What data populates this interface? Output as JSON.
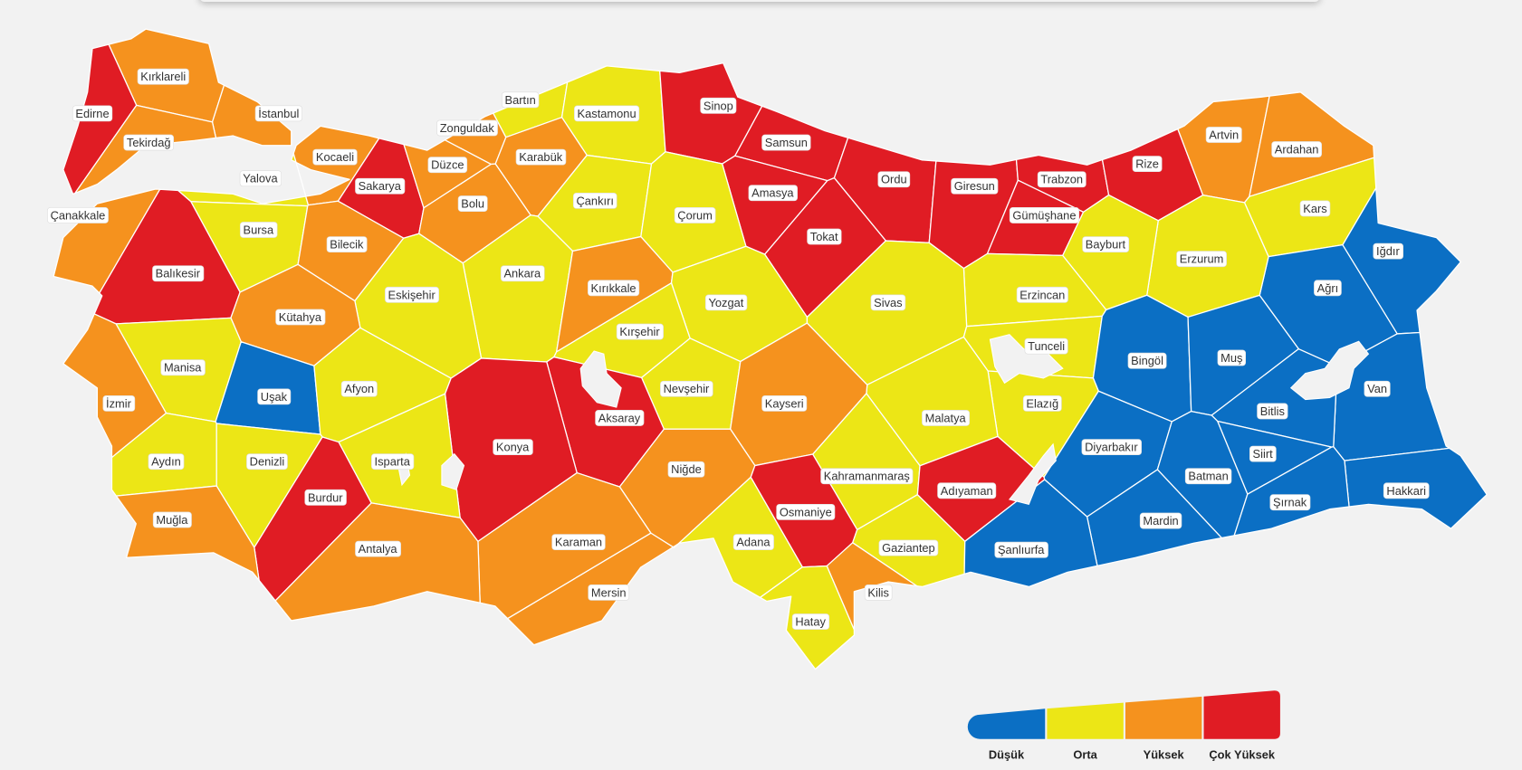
{
  "provinces": [
    {
      "name": "Kırklareli",
      "level": 2
    },
    {
      "name": "Edirne",
      "level": 3
    },
    {
      "name": "İstanbul",
      "level": 2
    },
    {
      "name": "Tekirdağ",
      "level": 2
    },
    {
      "name": "Yalova",
      "level": 1
    },
    {
      "name": "Kocaeli",
      "level": 2
    },
    {
      "name": "Sakarya",
      "level": 3
    },
    {
      "name": "Düzce",
      "level": 2
    },
    {
      "name": "Zonguldak",
      "level": 2
    },
    {
      "name": "Bartın",
      "level": 1
    },
    {
      "name": "Kastamonu",
      "level": 1
    },
    {
      "name": "Karabük",
      "level": 2
    },
    {
      "name": "Bolu",
      "level": 2
    },
    {
      "name": "Çanakkale",
      "level": 2
    },
    {
      "name": "Bursa",
      "level": 1
    },
    {
      "name": "Bilecik",
      "level": 2
    },
    {
      "name": "Balıkesir",
      "level": 3
    },
    {
      "name": "Sinop",
      "level": 3
    },
    {
      "name": "Samsun",
      "level": 3
    },
    {
      "name": "Amasya",
      "level": 3
    },
    {
      "name": "Tokat",
      "level": 3
    },
    {
      "name": "Ordu",
      "level": 3
    },
    {
      "name": "Giresun",
      "level": 3
    },
    {
      "name": "Trabzon",
      "level": 3
    },
    {
      "name": "Rize",
      "level": 3
    },
    {
      "name": "Gümüşhane",
      "level": 3
    },
    {
      "name": "Artvin",
      "level": 2
    },
    {
      "name": "Ardahan",
      "level": 2
    },
    {
      "name": "Kars",
      "level": 1
    },
    {
      "name": "Iğdır",
      "level": 0
    },
    {
      "name": "Ağrı",
      "level": 0
    },
    {
      "name": "Erzurum",
      "level": 1
    },
    {
      "name": "Bayburt",
      "level": 1
    },
    {
      "name": "Erzincan",
      "level": 1
    },
    {
      "name": "Çankırı",
      "level": 1
    },
    {
      "name": "Çorum",
      "level": 1
    },
    {
      "name": "Ankara",
      "level": 1
    },
    {
      "name": "Kırıkkale",
      "level": 2
    },
    {
      "name": "Eskişehir",
      "level": 1
    },
    {
      "name": "Kütahya",
      "level": 2
    },
    {
      "name": "Yozgat",
      "level": 1
    },
    {
      "name": "Sivas",
      "level": 1
    },
    {
      "name": "Tunceli",
      "level": 1
    },
    {
      "name": "Bingöl",
      "level": 0
    },
    {
      "name": "Muş",
      "level": 0
    },
    {
      "name": "Van",
      "level": 0
    },
    {
      "name": "Bitlis",
      "level": 0
    },
    {
      "name": "Elazığ",
      "level": 1
    },
    {
      "name": "Malatya",
      "level": 1
    },
    {
      "name": "Kırşehir",
      "level": 1
    },
    {
      "name": "Nevşehir",
      "level": 1
    },
    {
      "name": "Kayseri",
      "level": 2
    },
    {
      "name": "Manisa",
      "level": 1
    },
    {
      "name": "Uşak",
      "level": 0
    },
    {
      "name": "Afyon",
      "level": 1
    },
    {
      "name": "İzmir",
      "level": 2
    },
    {
      "name": "Aksaray",
      "level": 3
    },
    {
      "name": "Konya",
      "level": 3
    },
    {
      "name": "Aydın",
      "level": 1
    },
    {
      "name": "Denizli",
      "level": 1
    },
    {
      "name": "Isparta",
      "level": 1
    },
    {
      "name": "Niğde",
      "level": 2
    },
    {
      "name": "Kahramanmaraş",
      "level": 1
    },
    {
      "name": "Diyarbakır",
      "level": 0
    },
    {
      "name": "Siirt",
      "level": 0
    },
    {
      "name": "Batman",
      "level": 0
    },
    {
      "name": "Adıyaman",
      "level": 3
    },
    {
      "name": "Hakkari",
      "level": 0
    },
    {
      "name": "Şırnak",
      "level": 0
    },
    {
      "name": "Burdur",
      "level": 3
    },
    {
      "name": "Muğla",
      "level": 2
    },
    {
      "name": "Osmaniye",
      "level": 3
    },
    {
      "name": "Mardin",
      "level": 0
    },
    {
      "name": "Karaman",
      "level": 2
    },
    {
      "name": "Adana",
      "level": 1
    },
    {
      "name": "Gaziantep",
      "level": 1
    },
    {
      "name": "Şanlıurfa",
      "level": 0
    },
    {
      "name": "Antalya",
      "level": 2
    },
    {
      "name": "Mersin",
      "level": 2
    },
    {
      "name": "Kilis",
      "level": 2
    },
    {
      "name": "Hatay",
      "level": 1
    }
  ],
  "legend": [
    {
      "label": "Düşük",
      "color": "#0b6fc4"
    },
    {
      "label": "Orta",
      "color": "#ece616"
    },
    {
      "label": "Yüksek",
      "color": "#f5921e"
    },
    {
      "label": "Çok Yüksek",
      "color": "#e01c24"
    }
  ]
}
